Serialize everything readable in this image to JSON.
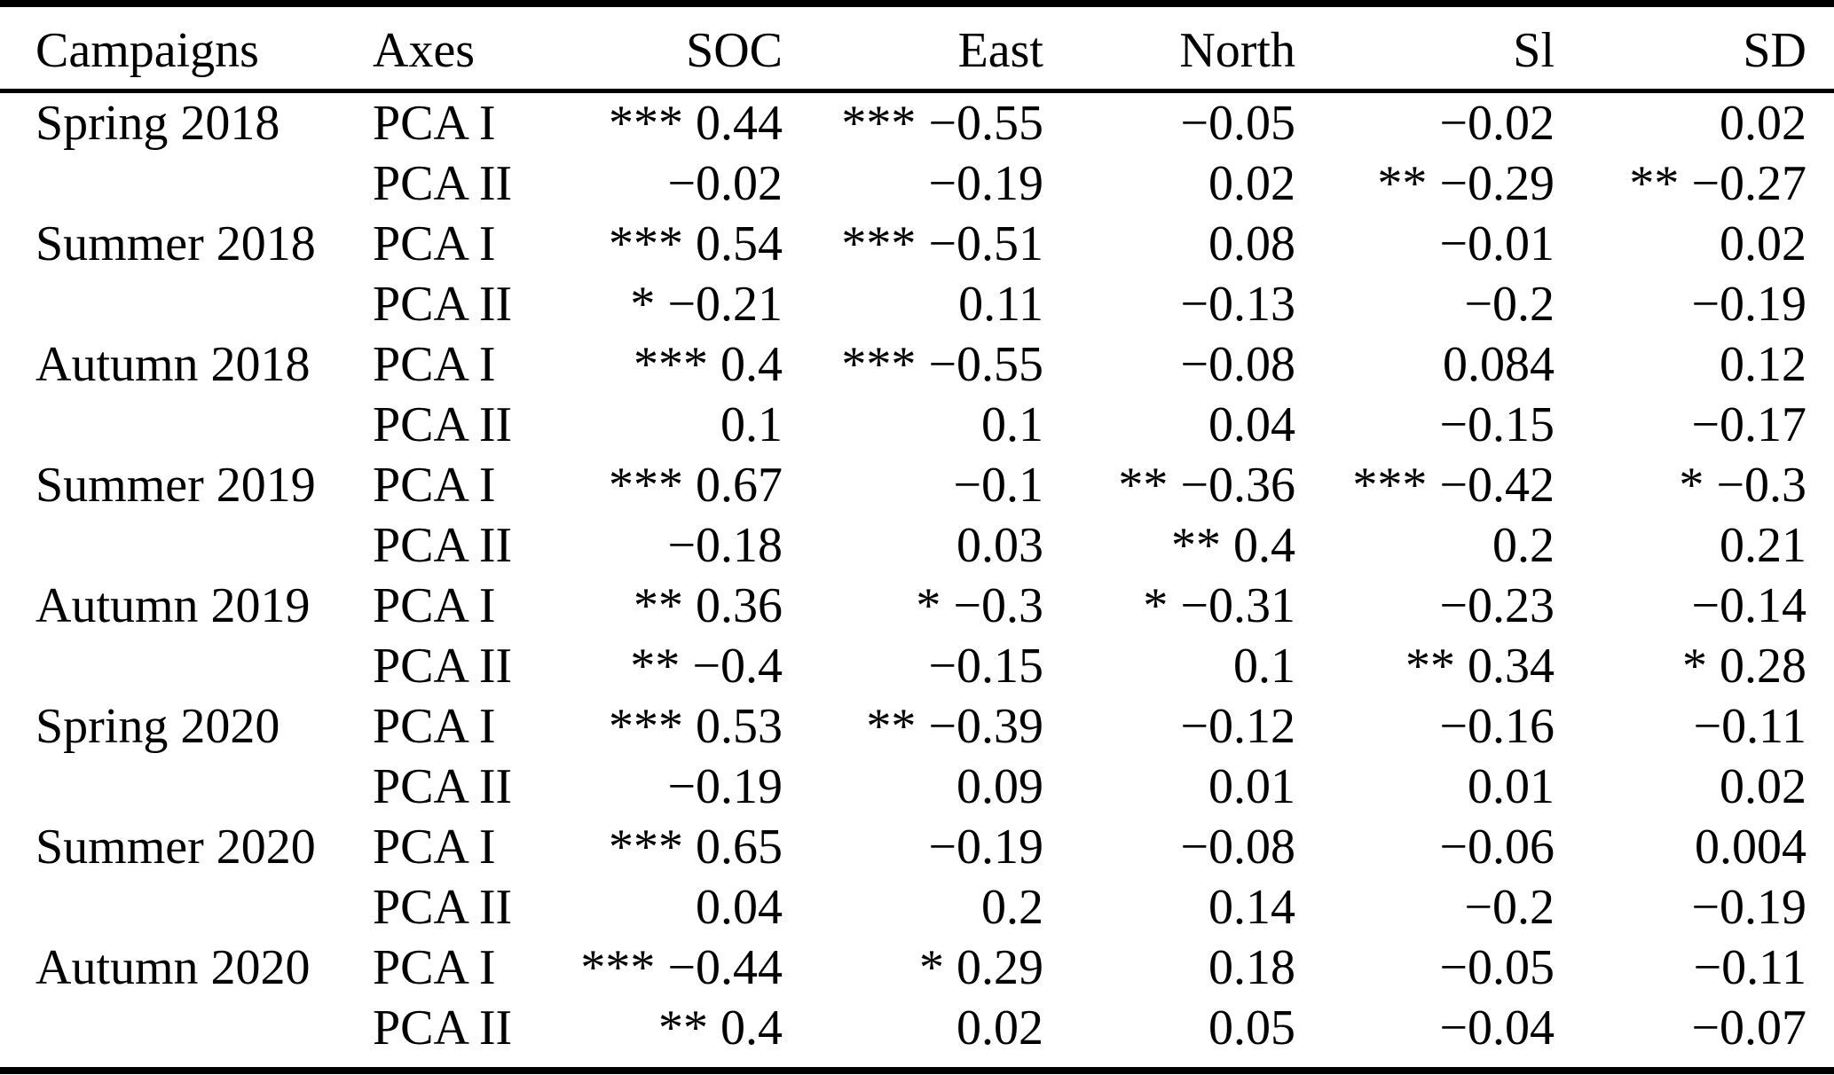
{
  "table": {
    "columns": [
      "Campaigns",
      "Axes",
      "SOC",
      "East",
      "North",
      "Sl",
      "SD"
    ],
    "rows": [
      {
        "campaign": "Spring 2018",
        "axis": "PCA I",
        "values": [
          "*** 0.44",
          "*** −0.55",
          "−0.05",
          "−0.02",
          "0.02"
        ]
      },
      {
        "campaign": "",
        "axis": "PCA II",
        "values": [
          "−0.02",
          "−0.19",
          "0.02",
          "** −0.29",
          "** −0.27"
        ]
      },
      {
        "campaign": "Summer 2018",
        "axis": "PCA I",
        "values": [
          "*** 0.54",
          "*** −0.51",
          "0.08",
          "−0.01",
          "0.02"
        ]
      },
      {
        "campaign": "",
        "axis": "PCA II",
        "values": [
          "* −0.21",
          "0.11",
          "−0.13",
          "−0.2",
          "−0.19"
        ]
      },
      {
        "campaign": "Autumn 2018",
        "axis": "PCA I",
        "values": [
          "*** 0.4",
          "*** −0.55",
          "−0.08",
          "0.084",
          "0.12"
        ]
      },
      {
        "campaign": "",
        "axis": "PCA II",
        "values": [
          "0.1",
          "0.1",
          "0.04",
          "−0.15",
          "−0.17"
        ]
      },
      {
        "campaign": "Summer 2019",
        "axis": "PCA I",
        "values": [
          "*** 0.67",
          "−0.1",
          "** −0.36",
          "*** −0.42",
          "* −0.3"
        ]
      },
      {
        "campaign": "",
        "axis": "PCA II",
        "values": [
          "−0.18",
          "0.03",
          "** 0.4",
          "0.2",
          "0.21"
        ]
      },
      {
        "campaign": "Autumn 2019",
        "axis": "PCA I",
        "values": [
          "** 0.36",
          "* −0.3",
          "* −0.31",
          "−0.23",
          "−0.14"
        ]
      },
      {
        "campaign": "",
        "axis": "PCA II",
        "values": [
          "** −0.4",
          "−0.15",
          "0.1",
          "** 0.34",
          "* 0.28"
        ]
      },
      {
        "campaign": "Spring 2020",
        "axis": "PCA I",
        "values": [
          "*** 0.53",
          "** −0.39",
          "−0.12",
          "−0.16",
          "−0.11"
        ]
      },
      {
        "campaign": "",
        "axis": "PCA II",
        "values": [
          "−0.19",
          "0.09",
          "0.01",
          "0.01",
          "0.02"
        ]
      },
      {
        "campaign": "Summer 2020",
        "axis": "PCA I",
        "values": [
          "*** 0.65",
          "−0.19",
          "−0.08",
          "−0.06",
          "0.004"
        ]
      },
      {
        "campaign": "",
        "axis": "PCA II",
        "values": [
          "0.04",
          "0.2",
          "0.14",
          "−0.2",
          "−0.19"
        ]
      },
      {
        "campaign": "Autumn 2020",
        "axis": "PCA I",
        "values": [
          "*** −0.44",
          "* 0.29",
          "0.18",
          "−0.05",
          "−0.11"
        ]
      },
      {
        "campaign": "",
        "axis": "PCA II",
        "values": [
          "** 0.4",
          "0.02",
          "0.05",
          "−0.04",
          "−0.07"
        ]
      }
    ],
    "significance_legend": {
      "three_stars": "***",
      "two_stars": "**",
      "one_star": "*"
    }
  },
  "colors": {
    "text": "#000000",
    "background": "#ffffff",
    "rule": "#000000"
  }
}
